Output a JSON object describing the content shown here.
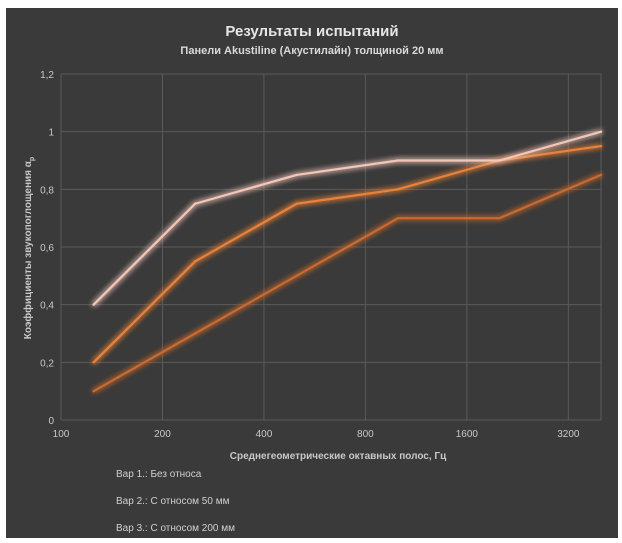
{
  "chart_data": {
    "type": "line",
    "title": "Результаты испытаний",
    "subtitle": "Панели Akustiline (Акустилайн) толщиной 20 мм",
    "xlabel": "Среднегеометрические октавных полос, Гц",
    "ylabel_main": "Коэффициенты звукопоглощения α",
    "ylabel_sub": "p",
    "x_scale": "log2",
    "x_ticks": [
      100,
      200,
      400,
      800,
      1600,
      3200
    ],
    "y_ticks": [
      "0",
      "0,2",
      "0,4",
      "0,6",
      "0,8",
      "1",
      "1,2"
    ],
    "y_tick_values": [
      0,
      0.2,
      0.4,
      0.6,
      0.8,
      1.0,
      1.2
    ],
    "xlim": [
      100,
      4000
    ],
    "ylim": [
      0,
      1.2
    ],
    "grid": "vertical and horizontal",
    "legend_position": "bottom-left",
    "x": [
      125,
      250,
      500,
      1000,
      2000,
      4000
    ],
    "series": [
      {
        "name": "Вар 1.: Без относа",
        "color": "#c86a30",
        "values": [
          0.1,
          0.3,
          0.5,
          0.7,
          0.7,
          0.85
        ]
      },
      {
        "name": "Вар 2.: С относом 50 мм",
        "color": "#e8823a",
        "values": [
          0.2,
          0.55,
          0.75,
          0.8,
          0.9,
          0.95
        ]
      },
      {
        "name": "Вар 3.: С относом 200 мм",
        "color": "#f2c6b8",
        "values": [
          0.4,
          0.75,
          0.85,
          0.9,
          0.9,
          1.0
        ]
      }
    ]
  }
}
